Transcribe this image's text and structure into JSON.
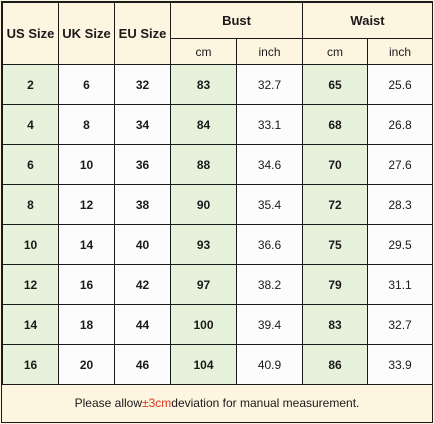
{
  "headers": {
    "us": "US Size",
    "uk": "UK Size",
    "eu": "EU Size",
    "bust": "Bust",
    "waist": "Waist",
    "cm": "cm",
    "inch": "inch"
  },
  "rows": [
    {
      "us": "2",
      "uk": "6",
      "eu": "32",
      "bust_cm": "83",
      "bust_in": "32.7",
      "waist_cm": "65",
      "waist_in": "25.6"
    },
    {
      "us": "4",
      "uk": "8",
      "eu": "34",
      "bust_cm": "84",
      "bust_in": "33.1",
      "waist_cm": "68",
      "waist_in": "26.8"
    },
    {
      "us": "6",
      "uk": "10",
      "eu": "36",
      "bust_cm": "88",
      "bust_in": "34.6",
      "waist_cm": "70",
      "waist_in": "27.6"
    },
    {
      "us": "8",
      "uk": "12",
      "eu": "38",
      "bust_cm": "90",
      "bust_in": "35.4",
      "waist_cm": "72",
      "waist_in": "28.3"
    },
    {
      "us": "10",
      "uk": "14",
      "eu": "40",
      "bust_cm": "93",
      "bust_in": "36.6",
      "waist_cm": "75",
      "waist_in": "29.5"
    },
    {
      "us": "12",
      "uk": "16",
      "eu": "42",
      "bust_cm": "97",
      "bust_in": "38.2",
      "waist_cm": "79",
      "waist_in": "31.1"
    },
    {
      "us": "14",
      "uk": "18",
      "eu": "44",
      "bust_cm": "100",
      "bust_in": "39.4",
      "waist_cm": "83",
      "waist_in": "32.7"
    },
    {
      "us": "16",
      "uk": "20",
      "eu": "46",
      "bust_cm": "104",
      "bust_in": "40.9",
      "waist_cm": "86",
      "waist_in": "33.9"
    }
  ],
  "note": {
    "before": "Please allow ",
    "accent": "±3cm",
    "after": " deviation for manual measurement."
  },
  "colors": {
    "background": "#fdf5e0",
    "green_cell": "#e6f2dc",
    "white_cell": "#fcfcfc",
    "accent": "#d9381e"
  }
}
